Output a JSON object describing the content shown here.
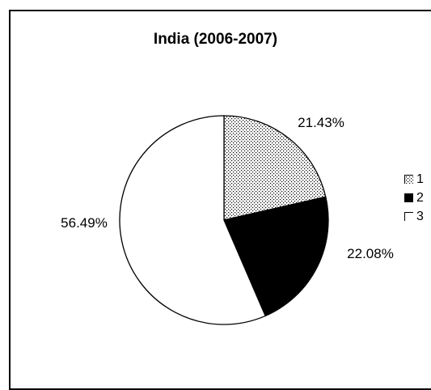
{
  "chart_data": {
    "type": "pie",
    "title": "India (2006-2007)",
    "categories": [
      "1",
      "2",
      "3"
    ],
    "values": [
      21.43,
      22.08,
      56.49
    ],
    "labels": [
      "21.43%",
      "22.08%",
      "56.49%"
    ],
    "fills": [
      "dotted",
      "#000000",
      "#ffffff"
    ],
    "legend_position": "right"
  }
}
